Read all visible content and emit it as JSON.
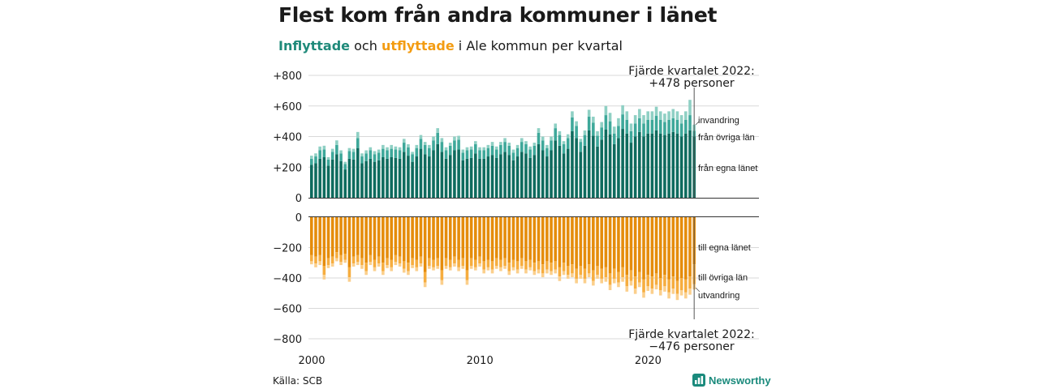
{
  "title": "Flest kom från andra kommuner i länet",
  "subtitle": {
    "in_word": "Inflyttade",
    "mid_word": "och",
    "out_word": "utflyttade",
    "rest": "i Ale kommun per kvartal"
  },
  "source": "Källa: SCB",
  "brand": "Newsworthy",
  "colors": {
    "in_lan": "#0e6b5e",
    "in_ovriga": "#3ea89a",
    "in_invandring": "#8fd0c4",
    "out_lan": "#e58c0b",
    "out_ovriga": "#f6ad3f",
    "out_utvandring": "#fbcf8c",
    "grid": "#d9d9d9",
    "axis": "#333333",
    "brand": "#1a8a7c"
  },
  "chart_data": {
    "type": "bar",
    "stacked": true,
    "x_unit": "quarter",
    "x_start": "2000 Q1",
    "x_end": "2022 Q4",
    "xticks": [
      "2000",
      "2010",
      "2020"
    ],
    "grid": true,
    "panels": [
      {
        "name": "inflyttade",
        "yticks": [
          "+800",
          "+600",
          "+400",
          "+200",
          "0"
        ],
        "ylim": [
          0,
          800
        ],
        "series": [
          {
            "name": "från egna länet",
            "values": [
              215,
              225,
              255,
              265,
              210,
              250,
              285,
              240,
              185,
              255,
              250,
              325,
              225,
              240,
              255,
              235,
              245,
              265,
              255,
              265,
              260,
              255,
              300,
              275,
              235,
              270,
              320,
              285,
              270,
              310,
              350,
              300,
              255,
              280,
              310,
              315,
              245,
              255,
              260,
              290,
              255,
              255,
              270,
              280,
              260,
              285,
              300,
              280,
              245,
              270,
              300,
              290,
              260,
              280,
              350,
              310,
              270,
              310,
              375,
              340,
              290,
              320,
              435,
              390,
              300,
              340,
              440,
              405,
              335,
              380,
              445,
              415,
              350,
              390,
              450,
              420,
              360,
              400,
              430,
              400,
              420,
              420,
              440,
              420,
              410,
              420,
              430,
              420,
              400,
              420,
              440,
              400
            ]
          },
          {
            "name": "från övriga län",
            "values": [
              40,
              45,
              55,
              50,
              40,
              50,
              60,
              50,
              35,
              50,
              50,
              65,
              45,
              50,
              55,
              50,
              50,
              55,
              55,
              55,
              55,
              55,
              60,
              55,
              50,
              55,
              65,
              60,
              55,
              65,
              75,
              65,
              55,
              60,
              65,
              65,
              50,
              55,
              55,
              60,
              55,
              55,
              55,
              60,
              55,
              60,
              65,
              60,
              50,
              55,
              65,
              60,
              55,
              60,
              75,
              65,
              55,
              65,
              80,
              70,
              60,
              70,
              90,
              80,
              65,
              70,
              90,
              85,
              70,
              80,
              95,
              85,
              70,
              80,
              95,
              90,
              75,
              85,
              90,
              85,
              90,
              90,
              95,
              90,
              85,
              90,
              90,
              90,
              85,
              90,
              100,
              38
            ]
          },
          {
            "name": "invandring",
            "values": [
              20,
              20,
              25,
              25,
              15,
              20,
              30,
              20,
              15,
              20,
              20,
              40,
              20,
              20,
              20,
              20,
              20,
              25,
              20,
              25,
              20,
              20,
              25,
              20,
              15,
              20,
              25,
              20,
              20,
              25,
              30,
              25,
              20,
              20,
              25,
              25,
              20,
              20,
              20,
              20,
              20,
              20,
              20,
              25,
              20,
              20,
              25,
              20,
              20,
              20,
              25,
              20,
              20,
              20,
              30,
              25,
              20,
              25,
              30,
              25,
              20,
              25,
              40,
              30,
              20,
              30,
              45,
              40,
              30,
              35,
              60,
              55,
              45,
              50,
              60,
              55,
              50,
              55,
              60,
              55,
              55,
              55,
              60,
              55,
              55,
              55,
              60,
              55,
              55,
              55,
              100,
              40
            ]
          }
        ]
      },
      {
        "name": "utflyttade",
        "yticks": [
          "0",
          "−200",
          "−400",
          "−600",
          "−800"
        ],
        "ylim": [
          -800,
          0
        ],
        "series": [
          {
            "name": "till egna länet",
            "values": [
              -250,
              -260,
              -250,
              -320,
              -270,
              -260,
              -230,
              -250,
              -240,
              -330,
              -260,
              -250,
              -270,
              -300,
              -250,
              -280,
              -260,
              -300,
              -270,
              -280,
              -250,
              -260,
              -290,
              -300,
              -270,
              -280,
              -260,
              -360,
              -270,
              -280,
              -270,
              -350,
              -270,
              -280,
              -260,
              -280,
              -270,
              -350,
              -270,
              -280,
              -260,
              -290,
              -280,
              -290,
              -270,
              -280,
              -270,
              -300,
              -280,
              -290,
              -270,
              -290,
              -280,
              -300,
              -290,
              -310,
              -290,
              -300,
              -290,
              -330,
              -300,
              -320,
              -310,
              -340,
              -320,
              -340,
              -310,
              -350,
              -320,
              -340,
              -330,
              -370,
              -340,
              -360,
              -330,
              -380,
              -350,
              -390,
              -360,
              -410,
              -380,
              -390,
              -370,
              -400,
              -380,
              -410,
              -390,
              -420,
              -400,
              -410,
              -390,
              -310
            ]
          },
          {
            "name": "till övriga län",
            "values": [
              -40,
              -45,
              -40,
              -60,
              -45,
              -45,
              -40,
              -45,
              -40,
              -65,
              -45,
              -45,
              -45,
              -55,
              -45,
              -50,
              -45,
              -55,
              -45,
              -50,
              -45,
              -45,
              -50,
              -55,
              -45,
              -50,
              -45,
              -70,
              -50,
              -50,
              -50,
              -65,
              -50,
              -50,
              -45,
              -50,
              -50,
              -65,
              -50,
              -50,
              -45,
              -55,
              -50,
              -55,
              -50,
              -50,
              -50,
              -55,
              -50,
              -55,
              -50,
              -55,
              -50,
              -55,
              -55,
              -60,
              -55,
              -55,
              -55,
              -60,
              -55,
              -60,
              -60,
              -65,
              -60,
              -65,
              -60,
              -70,
              -60,
              -65,
              -65,
              -75,
              -65,
              -70,
              -65,
              -75,
              -70,
              -80,
              -70,
              -85,
              -75,
              -80,
              -75,
              -80,
              -75,
              -85,
              -80,
              -85,
              -80,
              -85,
              -80,
              -130
            ]
          },
          {
            "name": "utvandring",
            "values": [
              -20,
              -25,
              -25,
              -30,
              -20,
              -20,
              -20,
              -20,
              -20,
              -30,
              -20,
              -20,
              -25,
              -25,
              -20,
              -25,
              -20,
              -25,
              -20,
              -25,
              -20,
              -20,
              -25,
              -25,
              -20,
              -25,
              -20,
              -30,
              -20,
              -20,
              -20,
              -30,
              -20,
              -20,
              -20,
              -25,
              -20,
              -30,
              -20,
              -20,
              -20,
              -25,
              -20,
              -25,
              -20,
              -25,
              -20,
              -25,
              -20,
              -25,
              -20,
              -25,
              -20,
              -25,
              -25,
              -25,
              -25,
              -25,
              -25,
              -30,
              -25,
              -25,
              -25,
              -30,
              -25,
              -30,
              -25,
              -30,
              -25,
              -30,
              -30,
              -35,
              -30,
              -30,
              -30,
              -35,
              -30,
              -35,
              -30,
              -35,
              -30,
              -35,
              -30,
              -35,
              -35,
              -40,
              -35,
              -40,
              -35,
              -40,
              -40,
              -36
            ]
          }
        ]
      }
    ],
    "series_labels": {
      "in": [
        "invandring",
        "från övriga län",
        "från egna länet"
      ],
      "out": [
        "till egna länet",
        "till övriga län",
        "utvandring"
      ]
    },
    "annotations": [
      {
        "text_line1": "Fjärde kvartalet 2022:",
        "text_line2": "+478 personer",
        "quarter": "2022 Q4",
        "value": 478
      },
      {
        "text_line1": "Fjärde kvartalet 2022:",
        "text_line2": "−476 personer",
        "quarter": "2022 Q4",
        "value": -476
      }
    ]
  }
}
